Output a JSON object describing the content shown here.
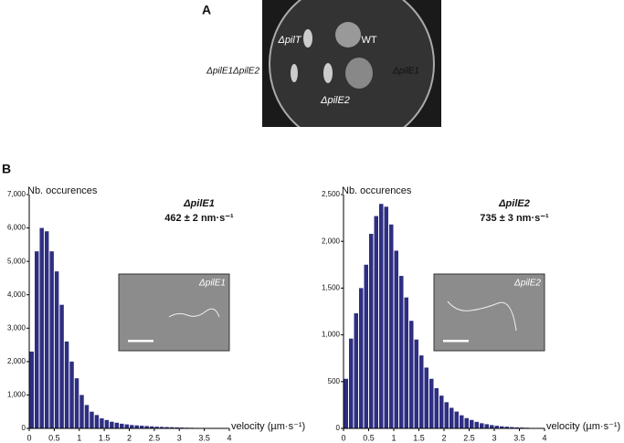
{
  "panel_a": {
    "label": "A",
    "photo_labels": [
      "ΔpilT",
      "WT",
      "ΔpilE1ΔpilE2",
      "ΔpilE1",
      "ΔpilE2"
    ]
  },
  "panel_b": {
    "label": "B"
  },
  "chart_data": [
    {
      "type": "histogram",
      "y_label": "Nb. occurences",
      "x_label": "velocity (µm·s⁻¹)",
      "annotation_title": "ΔpilE1",
      "annotation_value": "462 ± 2 nm·s⁻¹",
      "inset_label": "ΔpilE1",
      "color": "#2e2e82",
      "bins": [
        0,
        0.1,
        0.2,
        0.3,
        0.4,
        0.5,
        0.6,
        0.7,
        0.8,
        0.9,
        1,
        1.1,
        1.2,
        1.3,
        1.4,
        1.5,
        1.6,
        1.7,
        1.8,
        1.9,
        2,
        2.1,
        2.2,
        2.3,
        2.4,
        2.5,
        2.6,
        2.7,
        2.8,
        2.9,
        3,
        3.1,
        3.2,
        3.3,
        3.4,
        3.5,
        3.6,
        3.7,
        3.8,
        3.9,
        4
      ],
      "values": [
        2300,
        5300,
        6000,
        5900,
        5300,
        4700,
        3700,
        2600,
        2000,
        1500,
        1000,
        700,
        500,
        400,
        300,
        250,
        200,
        170,
        140,
        120,
        100,
        90,
        80,
        70,
        60,
        50,
        45,
        40,
        35,
        30,
        25,
        20,
        18,
        15,
        12,
        10,
        8,
        6,
        5,
        4
      ],
      "xlim": [
        0,
        4
      ],
      "xticks": [
        0,
        0.5,
        1,
        1.5,
        2,
        2.5,
        3,
        3.5,
        4
      ],
      "ylim": [
        0,
        7000
      ],
      "yticks": [
        0,
        {
          "value": 1000,
          "label": "1,000"
        },
        {
          "value": 2000,
          "label": "2,000"
        },
        {
          "value": 3000,
          "label": "3,000"
        },
        {
          "value": 4000,
          "label": "4,000"
        },
        {
          "value": 5000,
          "label": "5,000"
        },
        {
          "value": 6000,
          "label": "6,000"
        },
        {
          "value": 7000,
          "label": "7,000"
        }
      ]
    },
    {
      "type": "histogram",
      "y_label": "Nb. occurences",
      "x_label": "velocity (µm·s⁻¹)",
      "annotation_title": "ΔpilE2",
      "annotation_value": "735 ± 3 nm·s⁻¹",
      "inset_label": "ΔpilE2",
      "color": "#2e2e82",
      "bins": [
        0,
        0.1,
        0.2,
        0.3,
        0.4,
        0.5,
        0.6,
        0.7,
        0.8,
        0.9,
        1,
        1.1,
        1.2,
        1.3,
        1.4,
        1.5,
        1.6,
        1.7,
        1.8,
        1.9,
        2,
        2.1,
        2.2,
        2.3,
        2.4,
        2.5,
        2.6,
        2.7,
        2.8,
        2.9,
        3,
        3.1,
        3.2,
        3.3,
        3.4,
        3.5,
        3.6,
        3.7,
        3.8,
        3.9,
        4
      ],
      "values": [
        530,
        960,
        1230,
        1500,
        1750,
        2080,
        2270,
        2400,
        2370,
        2180,
        1900,
        1630,
        1400,
        1150,
        950,
        780,
        650,
        530,
        430,
        350,
        280,
        220,
        180,
        140,
        110,
        90,
        70,
        55,
        45,
        35,
        28,
        22,
        18,
        14,
        11,
        9,
        7,
        5,
        4,
        3
      ],
      "xlim": [
        0,
        4
      ],
      "xticks": [
        0,
        0.5,
        1,
        1.5,
        2,
        2.5,
        3,
        3.5,
        4
      ],
      "ylim": [
        0,
        2500
      ],
      "yticks": [
        0,
        500,
        {
          "value": 1000,
          "label": "1,000"
        },
        {
          "value": 1500,
          "label": "1,500"
        },
        {
          "value": 2000,
          "label": "2,000"
        },
        {
          "value": 2500,
          "label": "2,500"
        }
      ]
    }
  ]
}
